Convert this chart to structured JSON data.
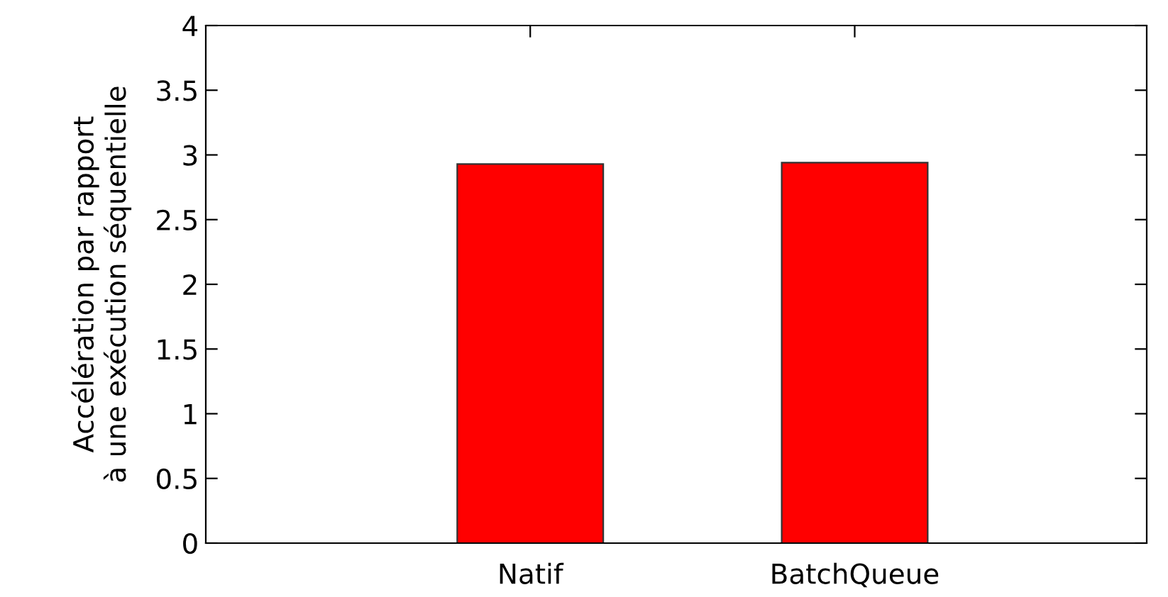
{
  "chart_data": {
    "type": "bar",
    "ylabel": "Accélération par rapport\nà une exécution séquentielle",
    "categories": [
      "Natif",
      "BatchQueue"
    ],
    "series": [
      {
        "color": "#ff0000",
        "values": [
          2.93,
          2.94
        ]
      }
    ],
    "ylim": [
      0,
      4
    ],
    "yticks": [
      0,
      0.5,
      1,
      1.5,
      2,
      2.5,
      3,
      3.5,
      4
    ],
    "grid": false,
    "legend": false
  }
}
